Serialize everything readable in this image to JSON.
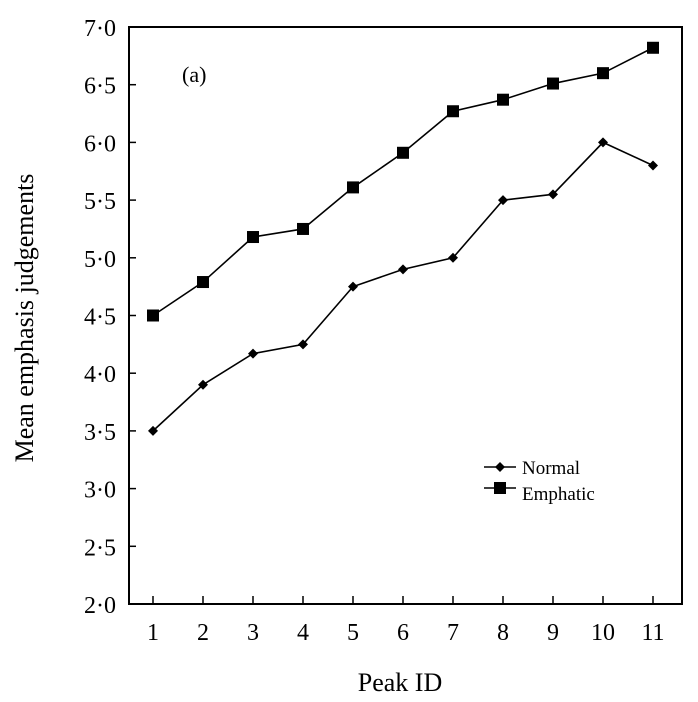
{
  "panel_label": "(a)",
  "chart_data": {
    "type": "line",
    "title": "",
    "xlabel": "Peak ID",
    "ylabel": "Mean emphasis judgements",
    "x": [
      1,
      2,
      3,
      4,
      5,
      6,
      7,
      8,
      9,
      10,
      11
    ],
    "x_tick_labels": [
      "1",
      "2",
      "3",
      "4",
      "5",
      "6",
      "7",
      "8",
      "9",
      "10",
      "11"
    ],
    "ylim": [
      2.0,
      7.0
    ],
    "y_ticks": [
      2.0,
      2.5,
      3.0,
      3.5,
      4.0,
      4.5,
      5.0,
      5.5,
      6.0,
      6.5,
      7.0
    ],
    "y_tick_labels": [
      "2·0",
      "2·5",
      "3·0",
      "3·5",
      "4·0",
      "4·5",
      "5·0",
      "5·5",
      "6·0",
      "6·5",
      "7·0"
    ],
    "grid": false,
    "legend_position": "lower-right",
    "series": [
      {
        "name": "Normal",
        "marker": "diamond",
        "color": "#000000",
        "values": [
          3.5,
          3.9,
          4.17,
          4.25,
          4.75,
          4.9,
          5.0,
          5.5,
          5.55,
          6.0,
          5.8
        ]
      },
      {
        "name": "Emphatic",
        "marker": "square",
        "color": "#000000",
        "values": [
          4.5,
          4.79,
          5.18,
          5.25,
          5.61,
          5.91,
          6.27,
          6.37,
          6.51,
          6.6,
          6.82
        ]
      }
    ]
  }
}
